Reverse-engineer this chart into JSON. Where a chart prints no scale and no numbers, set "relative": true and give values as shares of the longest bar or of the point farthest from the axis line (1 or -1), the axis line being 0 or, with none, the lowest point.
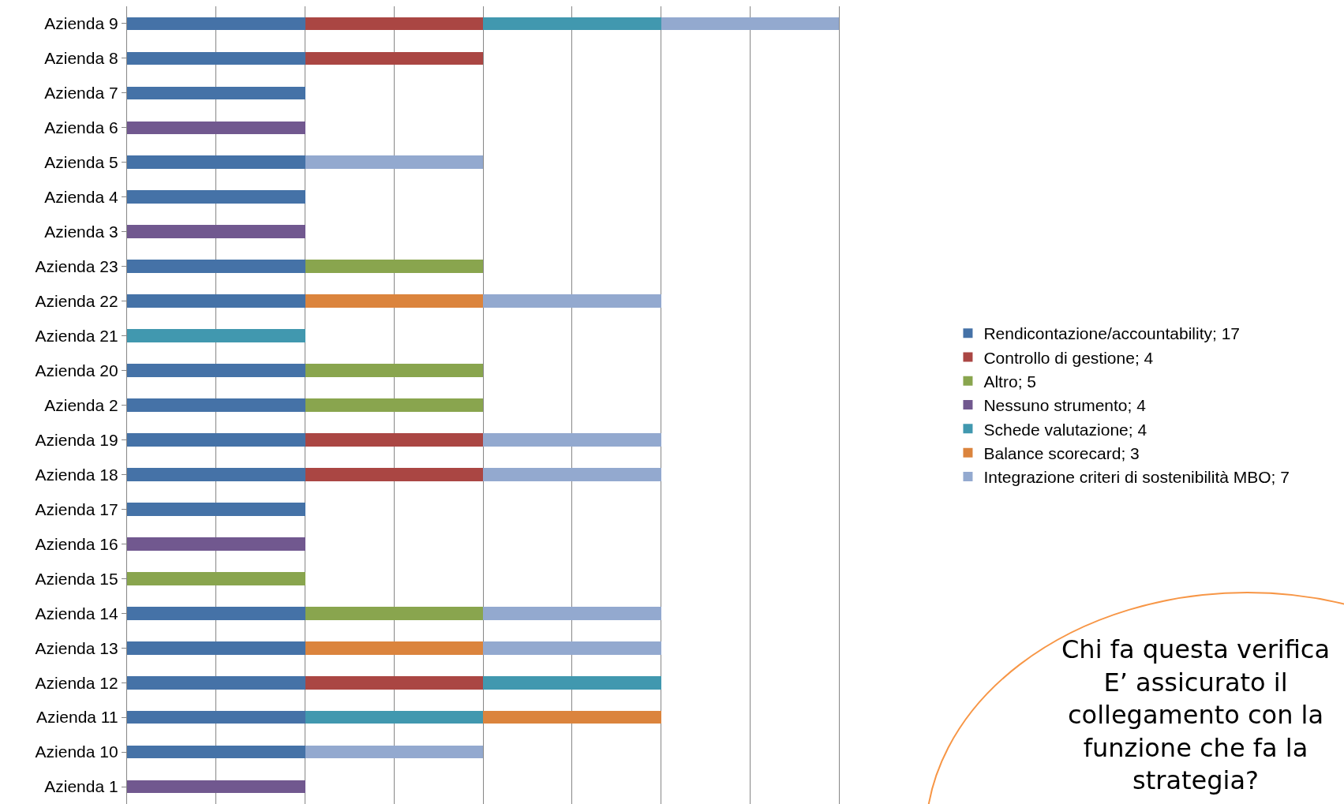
{
  "chart_data": {
    "type": "bar",
    "orientation": "horizontal",
    "stacked": true,
    "relative": true,
    "grid": "x",
    "legend": "right",
    "categories": [
      "Azienda 9",
      "Azienda 8",
      "Azienda 7",
      "Azienda 6",
      "Azienda 5",
      "Azienda 4",
      "Azienda 3",
      "Azienda 23",
      "Azienda 22",
      "Azienda 21",
      "Azienda 20",
      "Azienda 2",
      "Azienda 19",
      "Azienda 18",
      "Azienda 17",
      "Azienda 16",
      "Azienda 15",
      "Azienda 14",
      "Azienda 13",
      "Azienda 12",
      "Azienda 11",
      "Azienda 10",
      "Azienda 1"
    ],
    "series": [
      {
        "name": "Rendicontazione/accountability; 17",
        "color": "#4572a7",
        "values": [
          0.25,
          0.25,
          0.25,
          null,
          0.25,
          0.25,
          null,
          0.25,
          0.25,
          null,
          0.25,
          0.25,
          0.25,
          0.25,
          0.25,
          null,
          null,
          0.25,
          0.25,
          0.25,
          0.25,
          0.25,
          null
        ]
      },
      {
        "name": "Controllo di gestione; 4",
        "color": "#aa4643",
        "values": [
          0.25,
          0.25,
          null,
          null,
          null,
          null,
          null,
          null,
          null,
          null,
          null,
          null,
          0.25,
          0.25,
          null,
          null,
          null,
          null,
          null,
          0.25,
          null,
          null,
          null
        ]
      },
      {
        "name": "Altro; 5",
        "color": "#89a54e",
        "values": [
          null,
          null,
          null,
          null,
          null,
          null,
          null,
          0.25,
          null,
          null,
          0.25,
          0.25,
          null,
          null,
          null,
          null,
          0.25,
          0.25,
          null,
          null,
          null,
          null,
          null
        ]
      },
      {
        "name": "Nessuno strumento; 4",
        "color": "#71588f",
        "values": [
          null,
          null,
          null,
          0.25,
          null,
          null,
          0.25,
          null,
          null,
          null,
          null,
          null,
          null,
          null,
          null,
          0.25,
          null,
          null,
          null,
          null,
          null,
          null,
          0.25
        ]
      },
      {
        "name": "Schede valutazione; 4",
        "color": "#4198af",
        "values": [
          0.25,
          null,
          null,
          null,
          null,
          null,
          null,
          null,
          null,
          0.25,
          null,
          null,
          null,
          null,
          null,
          null,
          null,
          null,
          null,
          0.25,
          0.25,
          null,
          null
        ]
      },
      {
        "name": "Balance scorecard; 3",
        "color": "#db843d",
        "values": [
          null,
          null,
          null,
          null,
          null,
          null,
          null,
          null,
          0.25,
          null,
          null,
          null,
          null,
          null,
          null,
          null,
          null,
          null,
          0.25,
          null,
          0.25,
          null,
          null
        ]
      },
      {
        "name": "Integrazione criteri di sostenibilità MBO; 7",
        "color": "#93a9cf",
        "values": [
          0.25,
          null,
          null,
          null,
          0.25,
          null,
          null,
          null,
          0.25,
          null,
          null,
          null,
          0.25,
          0.25,
          null,
          null,
          null,
          0.25,
          0.25,
          null,
          null,
          0.25,
          null
        ]
      }
    ],
    "annotations": [
      "Chi fa questa verifica\nE’ assicurato il\ncollegamento con la\nfunzione che fa la\nstrategia?"
    ]
  }
}
